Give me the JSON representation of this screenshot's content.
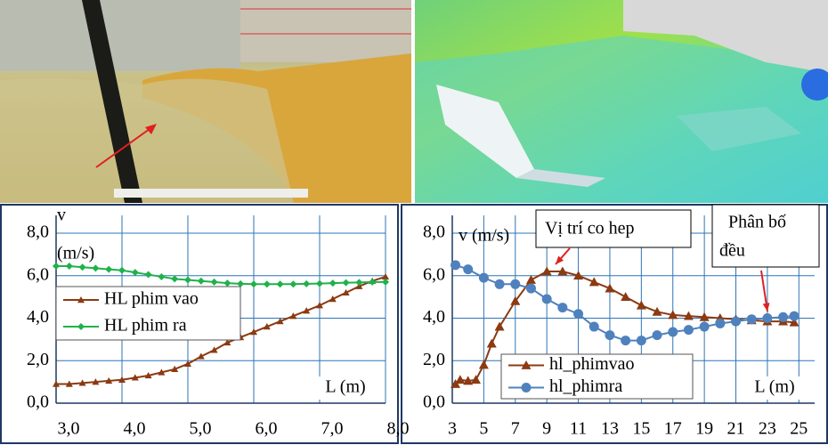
{
  "chart_data": [
    {
      "type": "line",
      "y_label_lines": [
        "v",
        "(m/s)"
      ],
      "x_label": "L (m)",
      "xlim": [
        3,
        8
      ],
      "ylim": [
        0,
        8
      ],
      "xticks": [
        {
          "value": 3,
          "label": "3,0"
        },
        {
          "value": 4,
          "label": "4,0"
        },
        {
          "value": 5,
          "label": "5,0"
        },
        {
          "value": 6,
          "label": "6,0"
        },
        {
          "value": 7,
          "label": "7,0"
        },
        {
          "value": 8,
          "label": "8,0"
        }
      ],
      "yticks": [
        {
          "value": 0,
          "label": "0,0"
        },
        {
          "value": 2,
          "label": "2,0"
        },
        {
          "value": 4,
          "label": "4,0"
        },
        {
          "value": 6,
          "label": "6,0"
        },
        {
          "value": 8,
          "label": "8,0"
        }
      ],
      "grid": true,
      "series": [
        {
          "name": "HL phim vao",
          "color": "#8b3a12",
          "marker": "triangle",
          "x": [
            3.0,
            3.2,
            3.4,
            3.6,
            3.8,
            4.0,
            4.2,
            4.4,
            4.6,
            4.8,
            5.0,
            5.2,
            5.4,
            5.6,
            5.8,
            6.0,
            6.2,
            6.4,
            6.6,
            6.8,
            7.0,
            7.2,
            7.4,
            7.6,
            7.8,
            8.0
          ],
          "values": [
            0.9,
            0.9,
            0.95,
            1.0,
            1.05,
            1.1,
            1.2,
            1.3,
            1.45,
            1.6,
            1.85,
            2.2,
            2.5,
            2.85,
            3.1,
            3.35,
            3.6,
            3.85,
            4.1,
            4.35,
            4.6,
            4.9,
            5.2,
            5.5,
            5.75,
            5.95
          ]
        },
        {
          "name": "HL phim ra",
          "color": "#1fb24a",
          "marker": "diamond",
          "x": [
            3.0,
            3.2,
            3.4,
            3.6,
            3.8,
            4.0,
            4.2,
            4.4,
            4.6,
            4.8,
            5.0,
            5.2,
            5.4,
            5.6,
            5.8,
            6.0,
            6.2,
            6.4,
            6.6,
            6.8,
            7.0,
            7.2,
            7.4,
            7.6,
            7.8,
            8.0
          ],
          "values": [
            6.45,
            6.45,
            6.4,
            6.35,
            6.3,
            6.25,
            6.15,
            6.05,
            5.95,
            5.85,
            5.8,
            5.75,
            5.7,
            5.65,
            5.62,
            5.6,
            5.6,
            5.6,
            5.6,
            5.62,
            5.63,
            5.65,
            5.67,
            5.68,
            5.7,
            5.7
          ]
        }
      ]
    },
    {
      "type": "line",
      "y_label_lines": [
        "v (m/s)"
      ],
      "x_label": "L (m)",
      "xlim": [
        3,
        26
      ],
      "ylim": [
        0,
        8
      ],
      "xticks": [
        3,
        5,
        7,
        9,
        11,
        13,
        15,
        17,
        19,
        21,
        23,
        25
      ],
      "yticks": [
        {
          "value": 0,
          "label": "0,0"
        },
        {
          "value": 2,
          "label": "2,0"
        },
        {
          "value": 4,
          "label": "4,0"
        },
        {
          "value": 6,
          "label": "6,0"
        },
        {
          "value": 8,
          "label": "8,0"
        }
      ],
      "grid": true,
      "annotations": [
        {
          "lines": [
            "Vị trí co hep"
          ]
        },
        {
          "lines": [
            "Phân bố",
            "đều"
          ]
        }
      ],
      "series": [
        {
          "name": "hl_phimvao",
          "color": "#8b3a12",
          "marker": "triangle",
          "x": [
            3.2,
            3.5,
            4,
            4.5,
            5,
            5.5,
            6,
            7,
            8,
            9,
            10,
            11,
            12,
            13,
            14,
            15,
            16,
            17,
            18,
            19,
            20,
            21,
            22,
            23,
            24,
            24.7
          ],
          "values": [
            0.9,
            1.1,
            1.05,
            1.1,
            1.8,
            2.8,
            3.6,
            4.8,
            5.8,
            6.2,
            6.2,
            6.0,
            5.7,
            5.4,
            5.0,
            4.6,
            4.3,
            4.15,
            4.1,
            4.05,
            4.0,
            3.95,
            3.9,
            3.85,
            3.85,
            3.8
          ]
        },
        {
          "name": "hl_phimra",
          "color": "#4f81bd",
          "marker": "circle",
          "x": [
            3.2,
            4,
            5,
            6,
            7,
            8,
            9,
            10,
            11,
            12,
            13,
            14,
            15,
            16,
            17,
            18,
            19,
            20,
            21,
            22,
            23,
            24,
            24.7
          ],
          "values": [
            6.5,
            6.3,
            5.9,
            5.6,
            5.6,
            5.4,
            4.9,
            4.5,
            4.2,
            3.6,
            3.2,
            2.95,
            2.95,
            3.2,
            3.35,
            3.45,
            3.6,
            3.75,
            3.85,
            3.95,
            4.0,
            4.05,
            4.1
          ]
        }
      ]
    }
  ]
}
